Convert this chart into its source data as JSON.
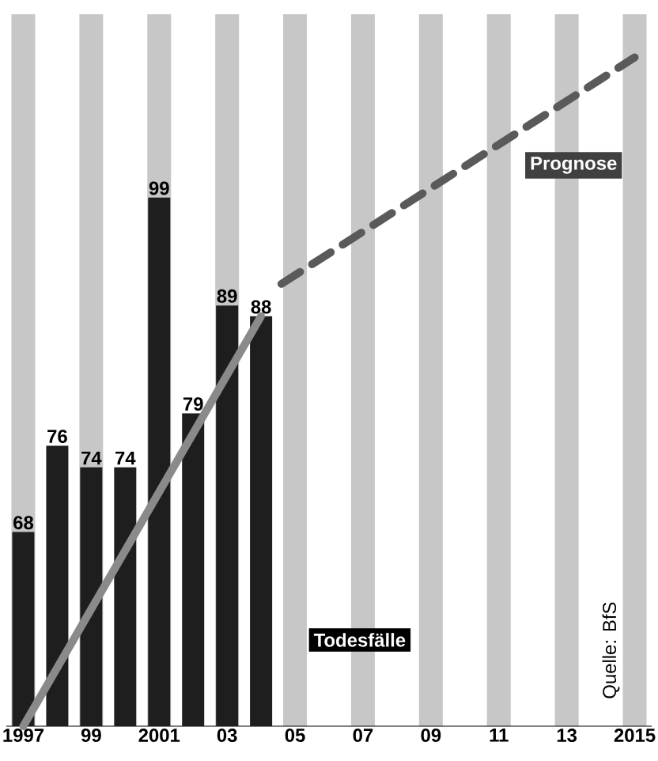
{
  "chart_data": {
    "type": "bar",
    "xlim": [
      1996.5,
      2015.5
    ],
    "ylim": [
      50,
      116
    ],
    "xticks": [
      {
        "value": 1997,
        "label": "1997"
      },
      {
        "value": 1999,
        "label": "99"
      },
      {
        "value": 2001,
        "label": "2001"
      },
      {
        "value": 2003,
        "label": "03"
      },
      {
        "value": 2005,
        "label": "05"
      },
      {
        "value": 2007,
        "label": "07"
      },
      {
        "value": 2009,
        "label": "09"
      },
      {
        "value": 2011,
        "label": "11"
      },
      {
        "value": 2013,
        "label": "13"
      },
      {
        "value": 2015,
        "label": "2015"
      }
    ],
    "tick_labels": "x",
    "grid": "x",
    "series": [
      {
        "name": "Todesfälle",
        "color": "#1e1e1e",
        "x": [
          1997,
          1998,
          1999,
          2000,
          2001,
          2002,
          2003,
          2004
        ],
        "values": [
          68,
          76,
          74,
          74,
          99,
          79,
          89,
          88
        ],
        "value_labels": [
          "68",
          "76",
          "74",
          "74",
          "99",
          "79",
          "89",
          "88"
        ]
      },
      {
        "type": "line",
        "color": "#8a8a8a",
        "x": [
          1997,
          2004
        ],
        "values": [
          50,
          88
        ]
      },
      {
        "name": "Prognose",
        "type": "line",
        "line_style": "dashed",
        "color": "#5a5a5a",
        "x": [
          2004.6,
          2015
        ],
        "values": [
          91,
          112
        ]
      }
    ],
    "annotations": [
      "Quelle: BfS"
    ]
  }
}
